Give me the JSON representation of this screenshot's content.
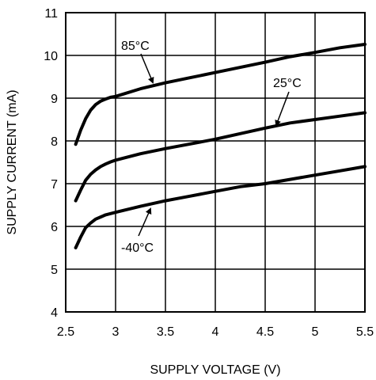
{
  "chart_data": {
    "type": "line",
    "title": "",
    "xlabel": "SUPPLY VOLTAGE (V)",
    "ylabel": "SUPPLY CURRENT (mA)",
    "xlim": [
      2.5,
      5.5
    ],
    "ylim": [
      4,
      11
    ],
    "grid": true,
    "xticks": [
      2.5,
      3,
      3.5,
      4,
      4.5,
      5,
      5.5
    ],
    "xtick_labels": [
      "2.5",
      "3",
      "3.5",
      "4",
      "4.5",
      "5",
      "5.5"
    ],
    "yticks": [
      4,
      5,
      6,
      7,
      8,
      9,
      10,
      11
    ],
    "ytick_labels": [
      "4",
      "5",
      "6",
      "7",
      "8",
      "9",
      "10",
      "11"
    ],
    "series": [
      {
        "name": "85°C",
        "x": [
          2.6,
          2.65,
          2.7,
          2.75,
          2.8,
          2.85,
          2.9,
          2.95,
          3.0,
          3.25,
          3.5,
          3.75,
          4.0,
          4.25,
          4.5,
          4.75,
          5.0,
          5.25,
          5.5
        ],
        "y": [
          7.92,
          8.25,
          8.52,
          8.72,
          8.85,
          8.93,
          8.98,
          9.02,
          9.04,
          9.22,
          9.36,
          9.48,
          9.6,
          9.72,
          9.84,
          9.97,
          10.07,
          10.18,
          10.26
        ]
      },
      {
        "name": "25°C",
        "x": [
          2.6,
          2.65,
          2.7,
          2.75,
          2.8,
          2.85,
          2.9,
          2.95,
          3.0,
          3.25,
          3.5,
          3.75,
          4.0,
          4.25,
          4.5,
          4.75,
          5.0,
          5.25,
          5.5
        ],
        "y": [
          6.6,
          6.85,
          7.08,
          7.22,
          7.32,
          7.4,
          7.46,
          7.51,
          7.55,
          7.7,
          7.82,
          7.93,
          8.04,
          8.17,
          8.3,
          8.42,
          8.5,
          8.58,
          8.66
        ]
      },
      {
        "name": "-40°C",
        "x": [
          2.6,
          2.65,
          2.7,
          2.75,
          2.8,
          2.85,
          2.9,
          2.95,
          3.0,
          3.25,
          3.5,
          3.75,
          4.0,
          4.25,
          4.5,
          4.75,
          5.0,
          5.25,
          5.5
        ],
        "y": [
          5.5,
          5.75,
          5.97,
          6.08,
          6.17,
          6.22,
          6.27,
          6.3,
          6.33,
          6.47,
          6.6,
          6.71,
          6.82,
          6.93,
          7.0,
          7.1,
          7.2,
          7.3,
          7.4
        ]
      }
    ],
    "annotations": [
      {
        "text": "85°C",
        "series": "85°C"
      },
      {
        "text": "25°C",
        "series": "25°C"
      },
      {
        "text": "-40°C",
        "series": "-40°C"
      }
    ]
  }
}
